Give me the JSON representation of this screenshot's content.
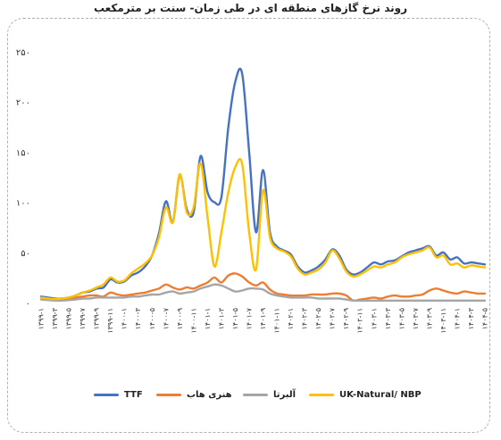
{
  "chart_data": {
    "type": "line",
    "title": "روند نرخ گازهای منطقه ای در طی زمان- سنت بر مترمکعب",
    "xlabel": "",
    "ylabel": "",
    "ylim": [
      0,
      25
    ],
    "yticks": [
      "۰",
      "۵۰",
      "۱۰۰",
      "۱۵۰",
      "۲۰۰",
      "۲۵۰"
    ],
    "xtick_labels": [
      "۱۳۹۹-۱",
      "۱۳۹۹-۳",
      "۱۳۹۹-۵",
      "۱۳۹۹-۷",
      "۱۳۹۹-۹",
      "۱۳۹۹-۱۱",
      "۱۴۰۰-۱",
      "۱۴۰۰-۳",
      "۱۴۰۰-۵",
      "۱۴۰۰-۷",
      "۱۴۰۰-۹",
      "۱۴۰۰-۱۱",
      "۱۴۰۱-۱",
      "۱۴۰۱-۳",
      "۱۴۰۱-۵",
      "۱۴۰۱-۷",
      "۱۴۰۱-۹",
      "۱۴۰۱-۱۱",
      "۱۴۰۲-۱",
      "۱۴۰۲-۳",
      "۱۴۰۲-۵",
      "۱۴۰۲-۷",
      "۱۴۰۲-۹",
      "۱۴۰۲-۱۱",
      "۱۴۰۳-۱",
      "۱۴۰۳-۳",
      "۱۴۰۳-۵",
      "۱۴۰۳-۷",
      "۱۴۰۳-۹",
      "۱۴۰۳-۱۱",
      "۱۴۰۴-۱",
      "۱۴۰۴-۳",
      "۱۴۰۴-۵"
    ],
    "n_points": 65,
    "grid": false,
    "legend_position": "bottom",
    "series": [
      {
        "name": "TTF",
        "color": "#4472C4",
        "values": [
          0.6,
          0.5,
          0.4,
          0.4,
          0.5,
          0.7,
          1.0,
          1.1,
          1.4,
          1.5,
          2.3,
          2.0,
          2.1,
          2.7,
          3.0,
          3.6,
          4.7,
          6.9,
          10.1,
          8.0,
          12.7,
          9.3,
          9.0,
          14.6,
          11.0,
          10.0,
          10.5,
          17.5,
          22.0,
          22.8,
          15.0,
          7.0,
          13.2,
          7.0,
          5.6,
          5.2,
          4.8,
          3.6,
          3.0,
          3.2,
          3.6,
          4.3,
          5.3,
          4.7,
          3.3,
          2.8,
          3.0,
          3.5,
          4.0,
          3.8,
          4.1,
          4.2,
          4.6,
          5.0,
          5.2,
          5.4,
          5.6,
          4.7,
          5.0,
          4.3,
          4.5,
          3.9,
          4.0,
          3.9,
          3.8
        ]
      },
      {
        "name": "هنری هاب",
        "color": "#ED7D31",
        "values": [
          0.5,
          0.4,
          0.3,
          0.35,
          0.4,
          0.5,
          0.6,
          0.7,
          0.7,
          0.6,
          1.0,
          0.8,
          0.7,
          0.8,
          0.9,
          1.0,
          1.2,
          1.4,
          1.8,
          1.5,
          1.3,
          1.5,
          1.4,
          1.7,
          2.0,
          2.5,
          2.0,
          2.7,
          2.9,
          2.6,
          2.0,
          1.7,
          2.0,
          1.3,
          0.9,
          0.8,
          0.7,
          0.7,
          0.7,
          0.8,
          0.8,
          0.8,
          0.9,
          0.9,
          0.7,
          0.2,
          0.3,
          0.4,
          0.5,
          0.4,
          0.6,
          0.7,
          0.6,
          0.6,
          0.7,
          0.8,
          1.2,
          1.4,
          1.2,
          1.0,
          0.9,
          1.1,
          1.0,
          0.9,
          0.9
        ]
      },
      {
        "name": "آلبرتا",
        "color": "#A5A5A5",
        "values": [
          0.3,
          0.25,
          0.2,
          0.2,
          0.25,
          0.3,
          0.4,
          0.4,
          0.5,
          0.5,
          0.5,
          0.5,
          0.5,
          0.6,
          0.6,
          0.7,
          0.8,
          0.8,
          1.0,
          1.1,
          0.9,
          1.0,
          1.1,
          1.4,
          1.6,
          1.8,
          1.7,
          1.4,
          1.1,
          1.2,
          1.4,
          1.4,
          1.3,
          0.9,
          0.7,
          0.6,
          0.5,
          0.5,
          0.5,
          0.5,
          0.4,
          0.4,
          0.4,
          0.4,
          0.3,
          0.2,
          0.2,
          0.2,
          0.2,
          0.2,
          0.2,
          0.2,
          0.2,
          0.2,
          0.2,
          0.2,
          0.2,
          0.2,
          0.2,
          0.2,
          0.2,
          0.2,
          0.2,
          0.2,
          0.2
        ]
      },
      {
        "name": "UK-Natural/  NBP",
        "color": "#FFC000",
        "values": [
          0.5,
          0.4,
          0.35,
          0.4,
          0.5,
          0.7,
          1.0,
          1.2,
          1.5,
          1.8,
          2.5,
          2.1,
          2.2,
          2.9,
          3.4,
          3.9,
          4.7,
          6.5,
          9.5,
          8.0,
          12.8,
          9.0,
          9.5,
          13.9,
          8.5,
          3.6,
          7.0,
          11.0,
          13.5,
          13.8,
          7.0,
          3.3,
          11.2,
          6.5,
          5.4,
          5.1,
          4.6,
          3.4,
          2.8,
          3.0,
          3.3,
          4.0,
          5.2,
          4.4,
          3.1,
          2.6,
          2.8,
          3.2,
          3.6,
          3.5,
          3.8,
          4.0,
          4.5,
          4.8,
          5.0,
          5.2,
          5.5,
          4.5,
          4.7,
          3.8,
          3.9,
          3.5,
          3.7,
          3.6,
          3.5
        ]
      }
    ]
  }
}
